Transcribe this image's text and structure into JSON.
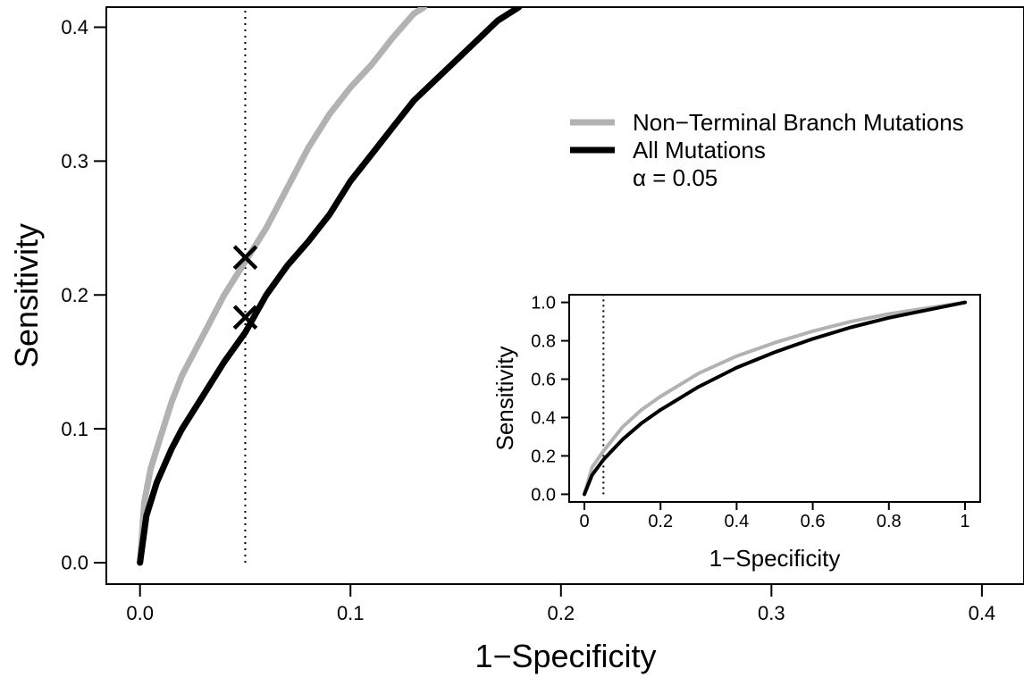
{
  "chart_data": [
    {
      "type": "line",
      "xlabel": "1−Specificity",
      "ylabel": "Sensitivity",
      "xlim": [
        -0.016,
        0.42
      ],
      "ylim": [
        -0.016,
        0.415
      ],
      "xticks": [
        0.0,
        0.1,
        0.2,
        0.3,
        0.4
      ],
      "xtick_labels": [
        "0.0",
        "0.1",
        "0.2",
        "0.3",
        "0.4"
      ],
      "yticks": [
        0.0,
        0.1,
        0.2,
        0.3,
        0.4
      ],
      "ytick_labels": [
        "0.0",
        "0.1",
        "0.2",
        "0.3",
        "0.4"
      ],
      "grid": false,
      "legend_position": "top-right",
      "series": [
        {
          "name": "Non−Terminal Branch Mutations",
          "color": "#b2b2b2",
          "x": [
            0.0,
            0.002,
            0.005,
            0.01,
            0.015,
            0.02,
            0.03,
            0.04,
            0.05,
            0.06,
            0.07,
            0.08,
            0.09,
            0.1,
            0.11,
            0.12,
            0.13,
            0.135
          ],
          "y": [
            0.0,
            0.045,
            0.07,
            0.095,
            0.12,
            0.14,
            0.17,
            0.2,
            0.225,
            0.25,
            0.28,
            0.31,
            0.335,
            0.355,
            0.372,
            0.392,
            0.41,
            0.415
          ]
        },
        {
          "name": "All Mutations",
          "color": "#000000",
          "x": [
            0.0,
            0.003,
            0.008,
            0.015,
            0.02,
            0.03,
            0.04,
            0.05,
            0.06,
            0.07,
            0.08,
            0.09,
            0.1,
            0.11,
            0.12,
            0.13,
            0.14,
            0.15,
            0.16,
            0.17,
            0.18
          ],
          "y": [
            0.0,
            0.035,
            0.06,
            0.085,
            0.1,
            0.125,
            0.15,
            0.172,
            0.2,
            0.222,
            0.24,
            0.26,
            0.285,
            0.305,
            0.325,
            0.345,
            0.36,
            0.375,
            0.39,
            0.405,
            0.415
          ]
        }
      ],
      "vline": {
        "x": 0.05,
        "style": "dotted"
      },
      "markers": [
        {
          "series": "Non−Terminal Branch Mutations",
          "x": 0.05,
          "y": 0.228,
          "symbol": "×",
          "color": "#b2b2b2"
        },
        {
          "series": "All Mutations",
          "x": 0.05,
          "y": 0.183,
          "symbol": "×",
          "color": "#000000"
        }
      ],
      "legend": {
        "entries": [
          {
            "label": "Non−Terminal Branch Mutations",
            "color": "#b2b2b2"
          },
          {
            "label": "All Mutations",
            "color": "#000000"
          }
        ],
        "annotation": "α = 0.05"
      }
    },
    {
      "type": "line",
      "placement": "inset",
      "xlabel": "1−Specificity",
      "ylabel": "Sensitivity",
      "xlim": [
        -0.04,
        1.04
      ],
      "ylim": [
        -0.04,
        1.04
      ],
      "xticks": [
        0,
        0.2,
        0.4,
        0.6,
        0.8,
        1
      ],
      "xtick_labels": [
        "0",
        "0.2",
        "0.4",
        "0.6",
        "0.8",
        "1"
      ],
      "yticks": [
        0.0,
        0.2,
        0.4,
        0.6,
        0.8,
        1.0
      ],
      "ytick_labels": [
        "0.0",
        "0.2",
        "0.4",
        "0.6",
        "0.8",
        "1.0"
      ],
      "grid": false,
      "series": [
        {
          "name": "Non−Terminal Branch Mutations",
          "color": "#b2b2b2",
          "x": [
            0.0,
            0.02,
            0.05,
            0.1,
            0.15,
            0.2,
            0.3,
            0.4,
            0.5,
            0.6,
            0.7,
            0.8,
            0.9,
            1.0
          ],
          "y": [
            0.0,
            0.14,
            0.225,
            0.35,
            0.44,
            0.51,
            0.63,
            0.72,
            0.79,
            0.85,
            0.9,
            0.94,
            0.97,
            1.0
          ]
        },
        {
          "name": "All Mutations",
          "color": "#000000",
          "x": [
            0.0,
            0.02,
            0.05,
            0.1,
            0.15,
            0.2,
            0.3,
            0.4,
            0.5,
            0.6,
            0.7,
            0.8,
            0.9,
            1.0
          ],
          "y": [
            0.0,
            0.1,
            0.18,
            0.285,
            0.37,
            0.44,
            0.56,
            0.66,
            0.74,
            0.81,
            0.87,
            0.92,
            0.96,
            1.0
          ]
        }
      ],
      "vline": {
        "x": 0.05,
        "style": "dotted"
      }
    }
  ]
}
